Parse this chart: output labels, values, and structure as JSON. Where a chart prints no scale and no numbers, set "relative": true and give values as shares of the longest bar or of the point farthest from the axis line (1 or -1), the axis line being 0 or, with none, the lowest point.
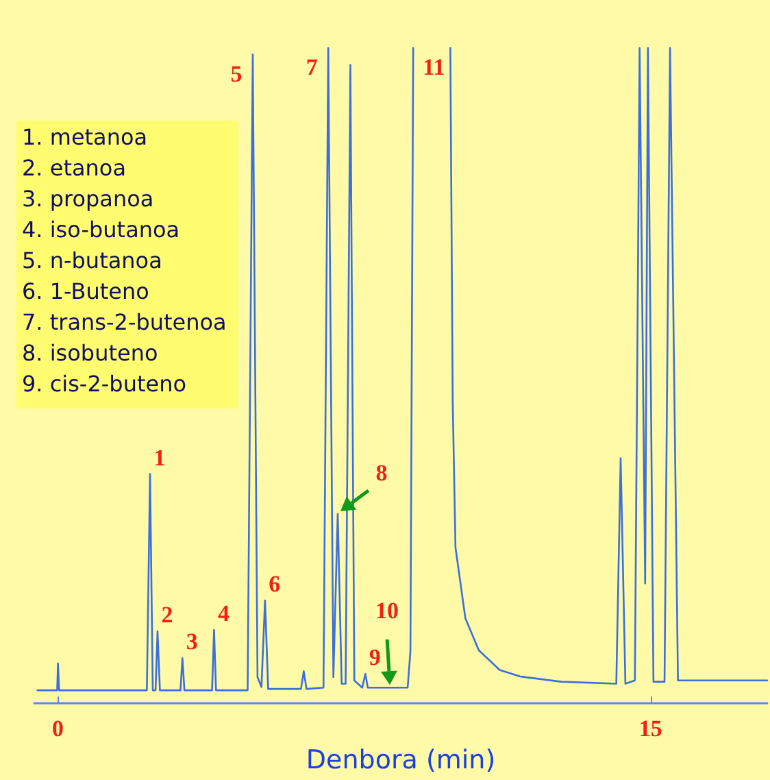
{
  "chart_data": {
    "type": "line",
    "relative": true,
    "xlabel": "Denbora (min)",
    "xlim": [
      -0.6,
      17.95
    ],
    "xticks": [
      0,
      15
    ],
    "marker": "none",
    "line_style": "solid",
    "x": [
      -0.52,
      -0.02,
      0.0,
      0.03,
      2.25,
      2.33,
      2.4,
      2.47,
      2.52,
      2.58,
      3.1,
      3.15,
      3.2,
      3.9,
      3.95,
      4.0,
      4.8,
      4.93,
      5.05,
      5.15,
      5.24,
      5.32,
      6.15,
      6.22,
      6.29,
      6.72,
      6.84,
      6.97,
      7.08,
      7.18,
      7.28,
      7.4,
      7.5,
      7.7,
      7.78,
      7.84,
      8.33,
      8.85,
      8.92,
      8.99,
      9.4,
      9.93,
      9.99,
      10.06,
      10.31,
      10.65,
      11.18,
      11.7,
      12.74,
      14.13,
      14.24,
      14.36,
      14.6,
      14.72,
      14.86,
      14.93,
      15.07,
      15.35,
      15.49,
      15.69,
      17.95
    ],
    "series": [
      {
        "color": "#3b6fdc",
        "values": [
          0.02,
          0.02,
          0.061,
          0.02,
          0.02,
          0.35,
          0.02,
          0.02,
          0.11,
          0.02,
          0.02,
          0.069,
          0.02,
          0.02,
          0.112,
          0.02,
          0.02,
          0.99,
          0.04,
          0.025,
          0.157,
          0.022,
          0.022,
          0.049,
          0.022,
          0.024,
          1.0,
          0.04,
          0.289,
          0.03,
          0.03,
          0.974,
          0.035,
          0.024,
          0.045,
          0.024,
          0.024,
          0.024,
          0.08,
          1.0,
          null,
          1.0,
          0.46,
          0.238,
          0.13,
          0.081,
          0.051,
          0.041,
          0.033,
          0.03,
          0.374,
          0.03,
          0.035,
          1.0,
          0.183,
          1.0,
          0.033,
          0.033,
          1.0,
          0.035,
          0.035
        ]
      }
    ],
    "annotations": [
      "1. metanoa",
      "2. etanoa",
      "3. propanoa",
      "4. iso-butanoa",
      "5. n-butanoa",
      "6. 1-Buteno",
      "7. trans-2-butenoa",
      "8. isobuteno",
      "9. cis-2-buteno",
      {
        "text": "1",
        "x": 2.33,
        "y": 0.35
      },
      {
        "text": "2",
        "x": 2.52,
        "y": 0.11
      },
      {
        "text": "3",
        "x": 3.15,
        "y": 0.069
      },
      {
        "text": "4",
        "x": 3.95,
        "y": 0.112
      },
      {
        "text": "5",
        "x": 4.93,
        "y": 0.99
      },
      {
        "text": "6",
        "x": 5.24,
        "y": 0.157
      },
      {
        "text": "7",
        "x": 6.84,
        "y": 1.0
      },
      {
        "text": "8",
        "x": 7.08,
        "y": 0.289
      },
      {
        "text": "9",
        "x": 7.78,
        "y": 0.045
      },
      {
        "text": "10",
        "x": 8.33,
        "y": 0.024
      },
      {
        "text": "11",
        "x": 9.93,
        "y": 1.0
      }
    ]
  }
}
